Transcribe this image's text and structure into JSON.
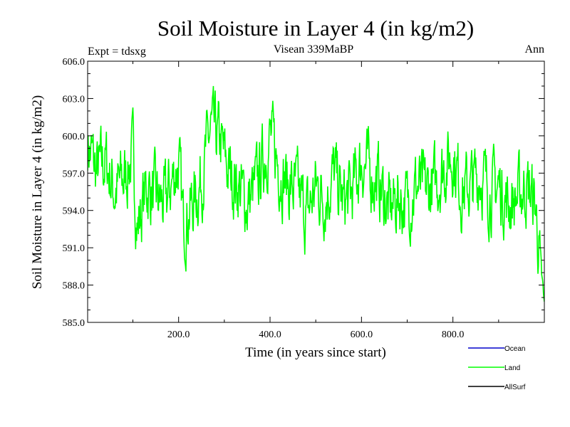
{
  "chart_data": {
    "type": "line",
    "title": "Soil Moisture in Layer 4 (in kg/m2)",
    "subtitle_left": "Expt = tdsxg",
    "subtitle_center": "Visean 339MaBP",
    "subtitle_right": "Ann",
    "xlabel": "Time (in years since start)",
    "ylabel": "Soil Moisture in Layer 4 (in kg/m2)",
    "xlim": [
      1,
      1000
    ],
    "ylim": [
      585.0,
      606.0
    ],
    "xticks": [
      200,
      400,
      600,
      800
    ],
    "xtick_labels": [
      "200.0",
      "400.0",
      "600.0",
      "800.0"
    ],
    "yticks": [
      585,
      588,
      591,
      594,
      597,
      600,
      603,
      606
    ],
    "ytick_labels": [
      "585.0",
      "588.0",
      "591.0",
      "594.0",
      "597.0",
      "600.0",
      "603.0",
      "606.0"
    ],
    "legend_position": "bottom-right",
    "series": [
      {
        "name": "Ocean",
        "color": "#0000cc",
        "values": []
      },
      {
        "name": "Land",
        "color": "#00ff00",
        "x": [
          1,
          20,
          40,
          60,
          80,
          100,
          110,
          130,
          150,
          170,
          200,
          210,
          230,
          250,
          270,
          290,
          310,
          330,
          350,
          370,
          400,
          420,
          440,
          460,
          480,
          500,
          520,
          540,
          560,
          580,
          600,
          620,
          640,
          660,
          680,
          700,
          720,
          740,
          760,
          780,
          800,
          820,
          840,
          860,
          880,
          900,
          920,
          940,
          960,
          980,
          1000
        ],
        "values": [
          599.5,
          597.0,
          598.0,
          595.5,
          596.5,
          598.5,
          592.5,
          596.0,
          595.0,
          594.5,
          598.0,
          593.0,
          594.5,
          596.5,
          600.5,
          599.5,
          597.0,
          596.0,
          594.5,
          596.0,
          600.0,
          597.5,
          596.0,
          595.5,
          593.5,
          596.0,
          595.0,
          597.0,
          594.5,
          595.5,
          598.0,
          597.0,
          596.0,
          594.0,
          595.0,
          594.5,
          596.0,
          595.5,
          596.0,
          597.5,
          598.5,
          595.5,
          596.0,
          597.0,
          595.5,
          596.0,
          594.5,
          595.0,
          596.0,
          594.5,
          586.0
        ]
      },
      {
        "name": "AllSurf",
        "color": "#000000",
        "values": []
      }
    ]
  }
}
